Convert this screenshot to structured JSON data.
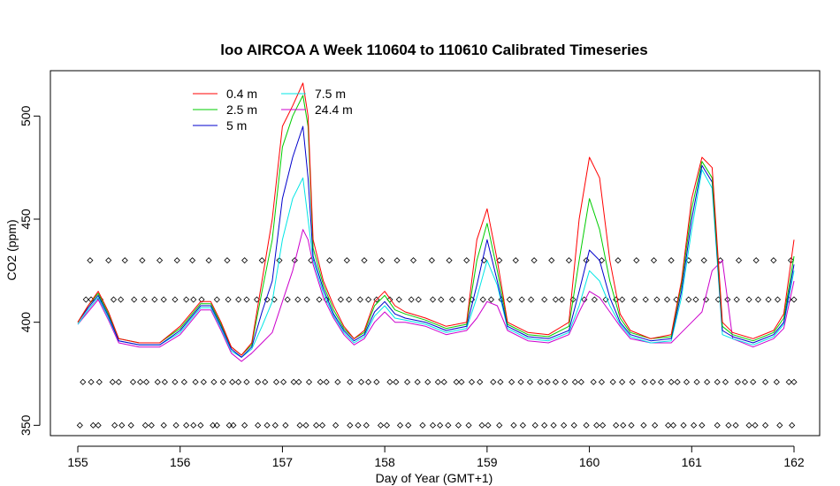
{
  "chart_data": {
    "type": "line",
    "title": "loo AIRCOA A  Week 110604 to 110610  Calibrated Timeseries",
    "xlabel": "Day of Year (GMT+1)",
    "ylabel": "CO2 (ppm)",
    "xlim": [
      155,
      162
    ],
    "ylim": [
      345,
      522
    ],
    "xticks": [
      155,
      156,
      157,
      158,
      159,
      160,
      161,
      162
    ],
    "yticks": [
      350,
      400,
      450,
      500
    ],
    "legend_position": "top-left",
    "series": [
      {
        "name": "0.4 m",
        "color": "#ff0000",
        "x": [
          155.0,
          155.1,
          155.2,
          155.3,
          155.4,
          155.6,
          155.8,
          156.0,
          156.2,
          156.3,
          156.4,
          156.5,
          156.6,
          156.7,
          156.8,
          156.9,
          157.0,
          157.1,
          157.2,
          157.25,
          157.3,
          157.4,
          157.5,
          157.6,
          157.7,
          157.8,
          157.9,
          158.0,
          158.1,
          158.2,
          158.4,
          158.6,
          158.8,
          158.9,
          159.0,
          159.1,
          159.2,
          159.4,
          159.6,
          159.8,
          159.9,
          160.0,
          160.1,
          160.2,
          160.3,
          160.4,
          160.6,
          160.8,
          160.9,
          161.0,
          161.1,
          161.2,
          161.3,
          161.4,
          161.6,
          161.8,
          161.9,
          162.0
        ],
        "y": [
          400,
          408,
          415,
          405,
          392,
          390,
          390,
          398,
          410,
          410,
          400,
          388,
          384,
          390,
          420,
          450,
          495,
          505,
          516,
          500,
          440,
          420,
          408,
          398,
          392,
          396,
          410,
          415,
          408,
          405,
          402,
          398,
          400,
          440,
          455,
          430,
          400,
          395,
          394,
          400,
          450,
          480,
          470,
          430,
          404,
          396,
          392,
          394,
          420,
          460,
          480,
          475,
          400,
          395,
          392,
          396,
          404,
          440
        ]
      },
      {
        "name": "2.5 m",
        "color": "#00cc00",
        "x": [
          155.0,
          155.1,
          155.2,
          155.3,
          155.4,
          155.6,
          155.8,
          156.0,
          156.2,
          156.3,
          156.4,
          156.5,
          156.6,
          156.7,
          156.8,
          156.9,
          157.0,
          157.1,
          157.2,
          157.25,
          157.3,
          157.4,
          157.5,
          157.6,
          157.7,
          157.8,
          157.9,
          158.0,
          158.1,
          158.2,
          158.4,
          158.6,
          158.8,
          158.9,
          159.0,
          159.1,
          159.2,
          159.4,
          159.6,
          159.8,
          159.9,
          160.0,
          160.1,
          160.2,
          160.3,
          160.4,
          160.6,
          160.8,
          160.9,
          161.0,
          161.1,
          161.2,
          161.3,
          161.4,
          161.6,
          161.8,
          161.9,
          162.0
        ],
        "y": [
          400,
          408,
          414,
          404,
          392,
          390,
          390,
          397,
          409,
          409,
          399,
          388,
          384,
          389,
          415,
          440,
          485,
          500,
          510,
          495,
          436,
          418,
          406,
          397,
          392,
          395,
          408,
          413,
          406,
          404,
          401,
          397,
          399,
          430,
          448,
          425,
          399,
          394,
          393,
          398,
          430,
          460,
          445,
          420,
          402,
          395,
          392,
          393,
          418,
          455,
          478,
          470,
          398,
          394,
          391,
          395,
          402,
          432
        ]
      },
      {
        "name": "5 m",
        "color": "#0000cc",
        "x": [
          155.0,
          155.1,
          155.2,
          155.3,
          155.4,
          155.6,
          155.8,
          156.0,
          156.2,
          156.3,
          156.4,
          156.5,
          156.6,
          156.7,
          156.8,
          156.9,
          157.0,
          157.1,
          157.2,
          157.25,
          157.3,
          157.4,
          157.5,
          157.6,
          157.7,
          157.8,
          157.9,
          158.0,
          158.1,
          158.2,
          158.4,
          158.6,
          158.8,
          158.9,
          159.0,
          159.1,
          159.2,
          159.4,
          159.6,
          159.8,
          159.9,
          160.0,
          160.1,
          160.2,
          160.3,
          160.4,
          160.6,
          160.8,
          160.9,
          161.0,
          161.1,
          161.2,
          161.3,
          161.4,
          161.6,
          161.8,
          161.9,
          162.0
        ],
        "y": [
          400,
          407,
          413,
          403,
          391,
          389,
          389,
          396,
          408,
          408,
          398,
          387,
          383,
          388,
          405,
          420,
          460,
          480,
          495,
          470,
          432,
          416,
          404,
          396,
          391,
          394,
          405,
          410,
          404,
          402,
          400,
          396,
          398,
          418,
          440,
          420,
          398,
          393,
          392,
          396,
          415,
          435,
          430,
          412,
          400,
          394,
          391,
          392,
          415,
          450,
          476,
          468,
          396,
          393,
          390,
          394,
          400,
          428
        ]
      },
      {
        "name": "7.5 m",
        "color": "#00e5e5",
        "x": [
          155.0,
          155.1,
          155.2,
          155.3,
          155.4,
          155.6,
          155.8,
          156.0,
          156.2,
          156.3,
          156.4,
          156.5,
          156.6,
          156.7,
          156.8,
          156.9,
          157.0,
          157.1,
          157.2,
          157.25,
          157.3,
          157.4,
          157.5,
          157.6,
          157.7,
          157.8,
          157.9,
          158.0,
          158.1,
          158.2,
          158.4,
          158.6,
          158.8,
          158.9,
          159.0,
          159.1,
          159.2,
          159.4,
          159.6,
          159.8,
          159.9,
          160.0,
          160.1,
          160.2,
          160.3,
          160.4,
          160.6,
          160.8,
          160.9,
          161.0,
          161.1,
          161.2,
          161.3,
          161.4,
          161.6,
          161.8,
          161.9,
          162.0
        ],
        "y": [
          399,
          406,
          412,
          402,
          391,
          389,
          389,
          395,
          407,
          407,
          397,
          386,
          383,
          387,
          398,
          410,
          440,
          460,
          470,
          450,
          430,
          414,
          403,
          395,
          390,
          393,
          403,
          408,
          402,
          401,
          399,
          395,
          397,
          412,
          430,
          418,
          397,
          392,
          391,
          395,
          408,
          425,
          420,
          408,
          399,
          393,
          390,
          391,
          412,
          445,
          474,
          465,
          394,
          392,
          389,
          393,
          399,
          425
        ]
      },
      {
        "name": "24.4 m",
        "color": "#cc00cc",
        "x": [
          155.0,
          155.1,
          155.2,
          155.3,
          155.4,
          155.6,
          155.8,
          156.0,
          156.2,
          156.3,
          156.4,
          156.5,
          156.6,
          156.7,
          156.8,
          156.9,
          157.0,
          157.1,
          157.2,
          157.25,
          157.3,
          157.4,
          157.5,
          157.6,
          157.7,
          157.8,
          157.9,
          158.0,
          158.1,
          158.2,
          158.4,
          158.6,
          158.8,
          158.9,
          159.0,
          159.1,
          159.2,
          159.4,
          159.6,
          159.8,
          159.9,
          160.0,
          160.1,
          160.2,
          160.3,
          160.4,
          160.6,
          160.8,
          160.9,
          161.0,
          161.1,
          161.2,
          161.3,
          161.4,
          161.6,
          161.8,
          161.9,
          162.0
        ],
        "y": [
          399,
          405,
          411,
          401,
          390,
          388,
          388,
          394,
          406,
          406,
          396,
          385,
          381,
          385,
          390,
          395,
          410,
          425,
          445,
          440,
          428,
          412,
          402,
          394,
          389,
          392,
          400,
          405,
          400,
          400,
          398,
          394,
          396,
          402,
          410,
          408,
          396,
          391,
          390,
          394,
          405,
          415,
          412,
          405,
          398,
          392,
          390,
          390,
          395,
          400,
          405,
          425,
          430,
          392,
          388,
          392,
          397,
          420
        ]
      }
    ],
    "marker_series": {
      "marker": "open-diamond",
      "color": "#000000",
      "rows": [
        {
          "y": 350,
          "x": [
            155.02,
            155.15,
            155.2,
            155.36,
            155.43,
            155.52,
            155.66,
            155.72,
            155.84,
            155.96,
            156.06,
            156.13,
            156.2,
            156.32,
            156.36,
            156.48,
            156.52,
            156.63,
            156.76,
            156.85,
            156.93,
            157.03,
            157.17,
            157.23,
            157.33,
            157.39,
            157.52,
            157.66,
            157.74,
            157.82,
            157.96,
            158.02,
            158.15,
            158.23,
            158.37,
            158.47,
            158.54,
            158.62,
            158.72,
            158.82,
            158.95,
            159.01,
            159.12,
            159.26,
            159.35,
            159.47,
            159.56,
            159.65,
            159.75,
            159.85,
            159.97,
            160.07,
            160.13,
            160.26,
            160.33,
            160.41,
            160.53,
            160.64,
            160.77,
            160.82,
            160.92,
            161.02,
            161.1,
            161.25,
            161.36,
            161.43,
            161.56,
            161.62,
            161.72,
            161.86,
            161.98
          ]
        },
        {
          "y": 371,
          "x": [
            155.05,
            155.13,
            155.21,
            155.34,
            155.4,
            155.54,
            155.61,
            155.67,
            155.78,
            155.85,
            155.95,
            156.04,
            156.15,
            156.23,
            156.33,
            156.42,
            156.51,
            156.57,
            156.65,
            156.76,
            156.83,
            156.94,
            157.01,
            157.11,
            157.16,
            157.26,
            157.37,
            157.43,
            157.54,
            157.66,
            157.77,
            157.84,
            157.92,
            158.05,
            158.11,
            158.22,
            158.32,
            158.42,
            158.52,
            158.58,
            158.7,
            158.75,
            158.85,
            158.93,
            159.06,
            159.13,
            159.24,
            159.33,
            159.42,
            159.52,
            159.59,
            159.67,
            159.76,
            159.86,
            159.92,
            160.04,
            160.12,
            160.23,
            160.32,
            160.42,
            160.54,
            160.62,
            160.7,
            160.8,
            160.86,
            160.95,
            161.05,
            161.15,
            161.25,
            161.33,
            161.45,
            161.52,
            161.6,
            161.72,
            161.83,
            161.95,
            162.0
          ]
        },
        {
          "y": 411,
          "x": [
            155.08,
            155.13,
            155.22,
            155.35,
            155.42,
            155.55,
            155.65,
            155.75,
            155.84,
            155.95,
            156.06,
            156.13,
            156.21,
            156.36,
            156.47,
            156.57,
            156.65,
            156.75,
            156.85,
            156.92,
            157.05,
            157.15,
            157.24,
            157.36,
            157.43,
            157.57,
            157.65,
            157.76,
            157.84,
            157.92,
            158.05,
            158.14,
            158.26,
            158.33,
            158.47,
            158.55,
            158.66,
            158.76,
            158.85,
            158.96,
            159.04,
            159.14,
            159.22,
            159.34,
            159.43,
            159.56,
            159.67,
            159.73,
            159.84,
            159.95,
            160.05,
            160.16,
            160.26,
            160.32,
            160.44,
            160.55,
            160.66,
            160.76,
            160.85,
            160.97,
            161.04,
            161.14,
            161.26,
            161.35,
            161.44,
            161.56,
            161.65,
            161.75,
            161.84,
            161.95,
            162.0
          ]
        },
        {
          "y": 430,
          "x": [
            155.12,
            155.3,
            155.46,
            155.63,
            155.8,
            155.97,
            156.12,
            156.28,
            156.46,
            156.63,
            156.8,
            156.97,
            157.12,
            157.28,
            157.46,
            157.63,
            157.8,
            157.97,
            158.12,
            158.28,
            158.46,
            158.63,
            158.8,
            158.97,
            159.12,
            159.28,
            159.46,
            159.63,
            159.8,
            159.97,
            160.12,
            160.28,
            160.46,
            160.63,
            160.8,
            160.97,
            161.12,
            161.28,
            161.46,
            161.63,
            161.8,
            161.97
          ]
        }
      ]
    }
  }
}
